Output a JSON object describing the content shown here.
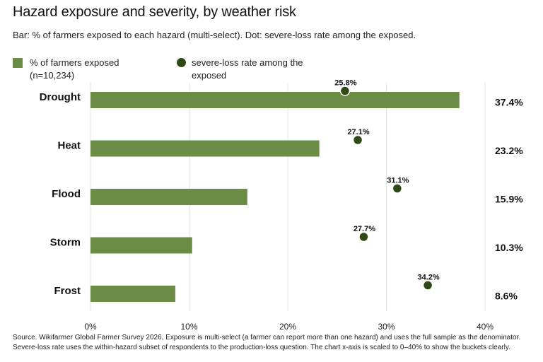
{
  "chart_data": {
    "type": "bar",
    "title": "Hazard exposure and severity, by weather risk",
    "subtitle": "Bar: % of farmers exposed to each hazard (multi-select). Dot: severe-loss rate among the exposed.",
    "categories": [
      "Drought",
      "Heat",
      "Flood",
      "Storm",
      "Frost"
    ],
    "series": [
      {
        "name": "% of farmers exposed (n=10,234)",
        "type": "bar",
        "values": [
          37.4,
          23.2,
          15.9,
          10.3,
          8.6
        ],
        "labels": [
          "37.4%",
          "23.2%",
          "15.9%",
          "10.3%",
          "8.6%"
        ],
        "color": "#6b8c45"
      },
      {
        "name": "severe-loss rate among the exposed",
        "type": "dot",
        "values": [
          25.8,
          27.1,
          31.1,
          27.7,
          34.2
        ],
        "labels": [
          "25.8%",
          "27.1%",
          "31.1%",
          "27.7%",
          "34.2%"
        ],
        "color": "#2f4a16"
      }
    ],
    "xlim": [
      0,
      40
    ],
    "xticks": [
      0,
      10,
      20,
      30,
      40
    ],
    "xtick_labels": [
      "0%",
      "10%",
      "20%",
      "30%",
      "40%"
    ],
    "grid": true,
    "legend": "top-left"
  },
  "legend": {
    "bar_label_line1": "% of farmers exposed",
    "bar_label_line2": "(n=10,234)",
    "dot_label_line1": "severe-loss rate among the",
    "dot_label_line2": "exposed"
  },
  "source": {
    "line1": "Source. Wikifarmer Global Farmer Survey 2026,  Exposure is multi-select (a farmer can report more than one hazard) and uses the full sample as the denominator.",
    "line2": "Severe-loss rate uses the within-hazard subset of respondents to the production-loss question. The chart x-axis is scaled to 0–40% to show the buckets clearly."
  }
}
